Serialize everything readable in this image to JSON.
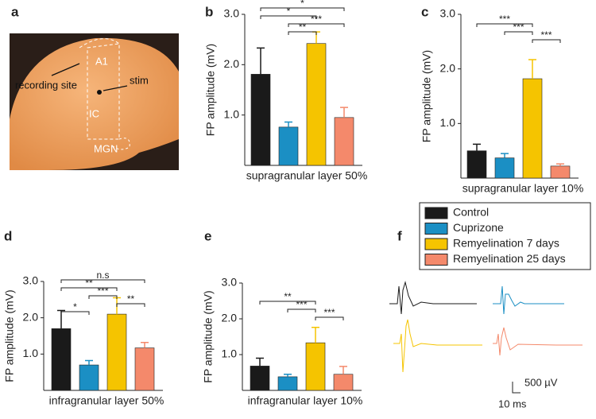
{
  "panel_labels": [
    "a",
    "b",
    "c",
    "d",
    "e",
    "f"
  ],
  "photo_labels": {
    "area1": "A1",
    "recording": "recording site",
    "stim": "stim",
    "ic": "IC",
    "mgn": "MGN"
  },
  "legend": [
    {
      "name": "Control",
      "color": "#1a1a1a"
    },
    {
      "name": "Cuprizone",
      "color": "#1b8fc4"
    },
    {
      "name": "Remyelination 7 days",
      "color": "#f5c400"
    },
    {
      "name": "Remyelination 25 days",
      "color": "#f4896b"
    }
  ],
  "scale_bar": {
    "voltage": "500 µV",
    "time": "10 ms"
  },
  "chart_data": [
    {
      "type": "bar",
      "y_label": "FP amplitude (mV)",
      "x_label": "supragranular layer 50%",
      "values": [
        1.81,
        0.76,
        2.42,
        0.95
      ],
      "errors": [
        0.52,
        0.1,
        0.23,
        0.2
      ],
      "ylim": [
        0,
        3
      ],
      "yticks": [
        {
          "value": 1,
          "label": "1.0"
        },
        {
          "value": 2,
          "label": "2.0"
        },
        {
          "value": 3,
          "label": "3.0"
        }
      ],
      "comparisons": [
        {
          "from": 0,
          "to": 3,
          "label": "*"
        },
        {
          "from": 0,
          "to": 2,
          "label": "*"
        },
        {
          "from": 1,
          "to": 3,
          "label": "***"
        },
        {
          "from": 1,
          "to": 2,
          "label": "**"
        }
      ]
    },
    {
      "type": "bar",
      "y_label": "FP amplitude (mV)",
      "x_label": "supragranular layer 10%",
      "values": [
        0.5,
        0.37,
        1.82,
        0.22
      ],
      "errors": [
        0.12,
        0.08,
        0.35,
        0.04
      ],
      "ylim": [
        0,
        3
      ],
      "yticks": [
        {
          "value": 1,
          "label": "1.0"
        },
        {
          "value": 2,
          "label": "2.0"
        },
        {
          "value": 3,
          "label": "3.0"
        }
      ],
      "comparisons": [
        {
          "from": 0,
          "to": 2,
          "label": "***"
        },
        {
          "from": 1,
          "to": 2,
          "label": "***"
        },
        {
          "from": 2,
          "to": 3,
          "label": "***"
        }
      ]
    },
    {
      "type": "bar",
      "y_label": "FP amplitude (mV)",
      "x_label": "infragranular layer 50%",
      "values": [
        1.7,
        0.7,
        2.1,
        1.17
      ],
      "errors": [
        0.5,
        0.12,
        0.45,
        0.15
      ],
      "ylim": [
        0,
        3
      ],
      "yticks": [
        {
          "value": 1,
          "label": "1.0"
        },
        {
          "value": 2,
          "label": "2.0"
        },
        {
          "value": 3,
          "label": "3.0"
        }
      ],
      "comparisons": [
        {
          "from": 0,
          "to": 3,
          "label": "n.s"
        },
        {
          "from": 0,
          "to": 2,
          "label": "**"
        },
        {
          "from": 1,
          "to": 2,
          "label": "***"
        },
        {
          "from": 2,
          "to": 3,
          "label": "**"
        },
        {
          "from": 0,
          "to": 1,
          "label": "*"
        }
      ]
    },
    {
      "type": "bar",
      "y_label": "FP amplitude (mV)",
      "x_label": "infragranular layer 10%",
      "values": [
        0.68,
        0.38,
        1.33,
        0.45
      ],
      "errors": [
        0.22,
        0.07,
        0.43,
        0.22
      ],
      "ylim": [
        0,
        3
      ],
      "yticks": [
        {
          "value": 1,
          "label": "1.0"
        },
        {
          "value": 2,
          "label": "2.0"
        },
        {
          "value": 3,
          "label": "3.0"
        }
      ],
      "comparisons": [
        {
          "from": 0,
          "to": 2,
          "label": "**"
        },
        {
          "from": 1,
          "to": 2,
          "label": "***"
        },
        {
          "from": 2,
          "to": 3,
          "label": "***"
        }
      ]
    }
  ]
}
